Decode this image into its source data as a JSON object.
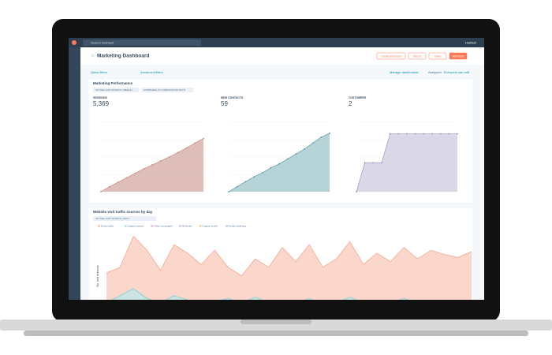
{
  "topbar": {
    "search": "Search HubSpot",
    "account": "Hubfest"
  },
  "header": {
    "title": "Marketing Dashboard",
    "buttons": [
      "Create dashboard",
      "Actions",
      "Share",
      "Add report"
    ]
  },
  "filters": {
    "quick": "Quick filters",
    "advanced": "Advanced filters",
    "manage": "Manage dashboards",
    "assigned": "Assigned:",
    "access": "Everyone can edit"
  },
  "performance": {
    "title": "Marketing Performance",
    "tags": [
      "ON THE LAST 90 DAYS | WEEKLY",
      "COMPARED TO | PREVIOUS 90 DAYS"
    ],
    "metrics": [
      {
        "label": "SESSIONS",
        "value": "5,369",
        "ylim": [
          0,
          7000
        ],
        "color": "#d9b3ae",
        "line": "#c58a84",
        "values": [
          0,
          500,
          950,
          1400,
          1850,
          2300,
          2700,
          3100,
          3500,
          3950,
          4400,
          4900,
          5369
        ]
      },
      {
        "label": "NEW CONTACTS",
        "value": "59",
        "ylim": [
          0,
          70
        ],
        "color": "#a9cdd1",
        "line": "#5c98a2",
        "values": [
          0,
          5,
          10,
          15,
          19,
          24,
          28,
          33,
          38,
          43,
          49,
          55,
          59
        ]
      },
      {
        "label": "CUSTOMERS",
        "value": "2",
        "ylim": [
          0,
          2.4
        ],
        "color": "#d3d0e3",
        "line": "#9b95c3",
        "values": [
          0,
          1,
          1,
          1,
          2,
          2,
          2,
          2,
          2,
          2,
          2,
          2,
          2
        ]
      }
    ]
  },
  "traffic": {
    "title": "Website visit traffic sources by day",
    "tag": "ON THE LAST 30 DAYS | DAILY",
    "axis_label": "No. visit sessions",
    "ylim": [
      0,
      300
    ],
    "series": [
      {
        "name": "Direct traffic",
        "color": "#f9cfc2",
        "line": "#f2a28c",
        "values": [
          150,
          170,
          280,
          230,
          160,
          250,
          220,
          180,
          230,
          170,
          140,
          200,
          170,
          240,
          190,
          250,
          170,
          200,
          260,
          180,
          220,
          190,
          240,
          200,
          230,
          215,
          205,
          225
        ]
      },
      {
        "name": "Organic search",
        "color": "#bfe6e6",
        "line": "#79c9cb",
        "values": [
          45,
          70,
          95,
          60,
          45,
          70,
          55,
          45,
          50,
          60,
          45,
          65,
          45,
          50,
          45,
          60,
          40,
          45,
          65,
          45,
          55,
          45,
          60,
          45,
          55,
          45,
          45,
          55
        ]
      },
      {
        "name": "Other campaigns",
        "color": "#e9c9d5",
        "values": []
      },
      {
        "name": "Referrals",
        "color": "#d6d1e6",
        "values": []
      },
      {
        "name": "Organic social",
        "color": "#f5d9a8",
        "values": []
      },
      {
        "name": "Email marketing",
        "color": "#c4d6ea",
        "values": []
      }
    ]
  }
}
